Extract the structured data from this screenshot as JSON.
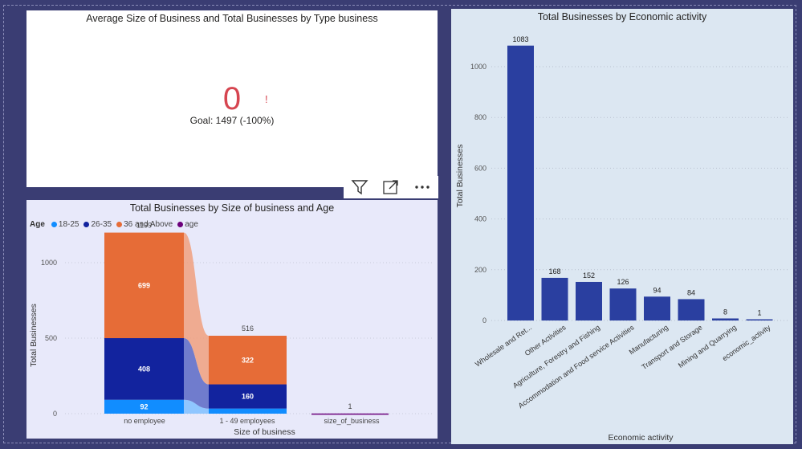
{
  "colors": {
    "kpi_red": "#d64550",
    "age_18_25": "#118dff",
    "age_26_35": "#12239e",
    "age_36_above": "#e66c37",
    "age_none": "#6b007b",
    "bar_fill": "#2a3fa0"
  },
  "kpi": {
    "title": "Average Size of Business and Total Businesses by Type business",
    "value": "0",
    "indicator": "!",
    "goal_text": "Goal: 1497 (-100%)"
  },
  "visual_header": {
    "icons": [
      "filter-icon",
      "focus-mode-icon",
      "more-options-icon"
    ]
  },
  "ribbon": {
    "title": "Total Businesses by Size of business and Age",
    "legend_title": "Age",
    "legend": [
      {
        "label": "18-25",
        "color": "#118dff"
      },
      {
        "label": "26-35",
        "color": "#12239e"
      },
      {
        "label": "36 and Above",
        "color": "#e66c37"
      },
      {
        "label": "age",
        "color": "#6b007b"
      }
    ],
    "chart_data": {
      "type": "bar",
      "stacked": true,
      "categories": [
        "no employee",
        "1 - 49 employees",
        "size_of_business"
      ],
      "series": [
        {
          "name": "18-25",
          "values": [
            92,
            34,
            0
          ]
        },
        {
          "name": "26-35",
          "values": [
            408,
            160,
            0
          ]
        },
        {
          "name": "36 and Above",
          "values": [
            699,
            322,
            0
          ]
        },
        {
          "name": "age",
          "values": [
            0,
            0,
            1
          ]
        }
      ],
      "totals": [
        1199,
        516,
        1
      ],
      "segment_labels": [
        [
          "92",
          "408",
          "699"
        ],
        [
          "",
          "160",
          "322"
        ],
        [
          "",
          "",
          ""
        ]
      ],
      "total_labels": [
        "1199",
        "516",
        "1"
      ],
      "y_ticks": [
        0,
        500,
        1000
      ],
      "ylim": [
        0,
        1250
      ],
      "xlabel": "Size of business",
      "ylabel": "Total Businesses",
      "grid": true
    }
  },
  "bar": {
    "title": "Total Businesses by Economic activity",
    "chart_data": {
      "type": "bar",
      "categories": [
        "Wholesale and Ret...",
        "Other Activities",
        "Agriculture, Forestry and Fishing",
        "Accommodation and Food service Activities",
        "Manufacturing",
        "Transport and Storage",
        "Mining and Quarrying",
        "economic_activity"
      ],
      "values": [
        1083,
        168,
        152,
        126,
        94,
        84,
        8,
        1
      ],
      "value_labels": [
        "1083",
        "168",
        "152",
        "126",
        "94",
        "84",
        "8",
        "1"
      ],
      "y_ticks": [
        0,
        200,
        400,
        600,
        800,
        1000
      ],
      "ylim": [
        0,
        1150
      ],
      "xlabel": "Economic activity",
      "ylabel": "Total Businesses",
      "grid": true
    }
  }
}
